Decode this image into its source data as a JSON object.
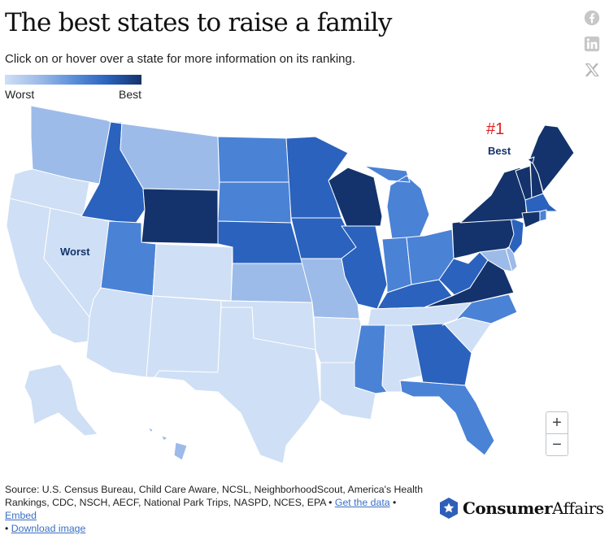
{
  "header": {
    "title": "The best states to raise a family",
    "subtitle": "Click on or hover over a state for more information on its ranking."
  },
  "legend": {
    "low_label": "Worst",
    "high_label": "Best"
  },
  "colors": {
    "rank_1": "#14336c",
    "rank_2": "#2a62bd",
    "rank_3": "#4a82d6",
    "rank_4": "#9dbbe9",
    "rank_5": "#cfdff5",
    "annotation_red": "#e02020",
    "brand_blue": "#2e5fb8"
  },
  "annotations": {
    "rank_number": "#1",
    "best_label": "Best",
    "worst_label": "Worst"
  },
  "states": [
    {
      "name": "Maine",
      "color": "rank_1"
    },
    {
      "name": "New Hampshire",
      "color": "rank_1"
    },
    {
      "name": "Vermont",
      "color": "rank_1"
    },
    {
      "name": "Massachusetts",
      "color": "rank_2"
    },
    {
      "name": "Rhode Island",
      "color": "rank_3"
    },
    {
      "name": "Connecticut",
      "color": "rank_1"
    },
    {
      "name": "New York",
      "color": "rank_1"
    },
    {
      "name": "New Jersey",
      "color": "rank_2"
    },
    {
      "name": "Pennsylvania",
      "color": "rank_1"
    },
    {
      "name": "Delaware",
      "color": "rank_4"
    },
    {
      "name": "Maryland",
      "color": "rank_4"
    },
    {
      "name": "Virginia",
      "color": "rank_1"
    },
    {
      "name": "West Virginia",
      "color": "rank_2"
    },
    {
      "name": "Ohio",
      "color": "rank_3"
    },
    {
      "name": "Michigan",
      "color": "rank_3"
    },
    {
      "name": "Indiana",
      "color": "rank_3"
    },
    {
      "name": "Kentucky",
      "color": "rank_2"
    },
    {
      "name": "Tennessee",
      "color": "rank_5"
    },
    {
      "name": "North Carolina",
      "color": "rank_3"
    },
    {
      "name": "South Carolina",
      "color": "rank_5"
    },
    {
      "name": "Georgia",
      "color": "rank_2"
    },
    {
      "name": "Florida",
      "color": "rank_3"
    },
    {
      "name": "Alabama",
      "color": "rank_5"
    },
    {
      "name": "Mississippi",
      "color": "rank_3"
    },
    {
      "name": "Louisiana",
      "color": "rank_5"
    },
    {
      "name": "Arkansas",
      "color": "rank_5"
    },
    {
      "name": "Missouri",
      "color": "rank_4"
    },
    {
      "name": "Illinois",
      "color": "rank_2"
    },
    {
      "name": "Wisconsin",
      "color": "rank_1"
    },
    {
      "name": "Minnesota",
      "color": "rank_2"
    },
    {
      "name": "Iowa",
      "color": "rank_2"
    },
    {
      "name": "North Dakota",
      "color": "rank_3"
    },
    {
      "name": "South Dakota",
      "color": "rank_3"
    },
    {
      "name": "Nebraska",
      "color": "rank_2"
    },
    {
      "name": "Kansas",
      "color": "rank_4"
    },
    {
      "name": "Oklahoma",
      "color": "rank_5"
    },
    {
      "name": "Texas",
      "color": "rank_5"
    },
    {
      "name": "New Mexico",
      "color": "rank_5"
    },
    {
      "name": "Colorado",
      "color": "rank_5"
    },
    {
      "name": "Wyoming",
      "color": "rank_1"
    },
    {
      "name": "Montana",
      "color": "rank_4"
    },
    {
      "name": "Idaho",
      "color": "rank_2"
    },
    {
      "name": "Utah",
      "color": "rank_3"
    },
    {
      "name": "Arizona",
      "color": "rank_5"
    },
    {
      "name": "Nevada",
      "color": "rank_5"
    },
    {
      "name": "California",
      "color": "rank_5"
    },
    {
      "name": "Oregon",
      "color": "rank_5"
    },
    {
      "name": "Washington",
      "color": "rank_4"
    },
    {
      "name": "Alaska",
      "color": "rank_5"
    },
    {
      "name": "Hawaii",
      "color": "rank_4"
    }
  ],
  "controls": {
    "zoom_in": "+",
    "zoom_out": "−"
  },
  "share": {
    "facebook": "facebook-icon",
    "linkedin": "linkedin-icon",
    "x": "x-icon"
  },
  "source": {
    "text": "Source: U.S. Census Bureau, Child Care Aware, NCSL, NeighborhoodScout, America's Health Rankings, CDC, NSCH, AECF, National Park Trips, NASPD, NCES, EPA",
    "get_data": "Get the data",
    "embed": "Embed",
    "download": "Download image",
    "sep": " • "
  },
  "brand": {
    "part1": "Consumer",
    "part2": "Affairs"
  }
}
